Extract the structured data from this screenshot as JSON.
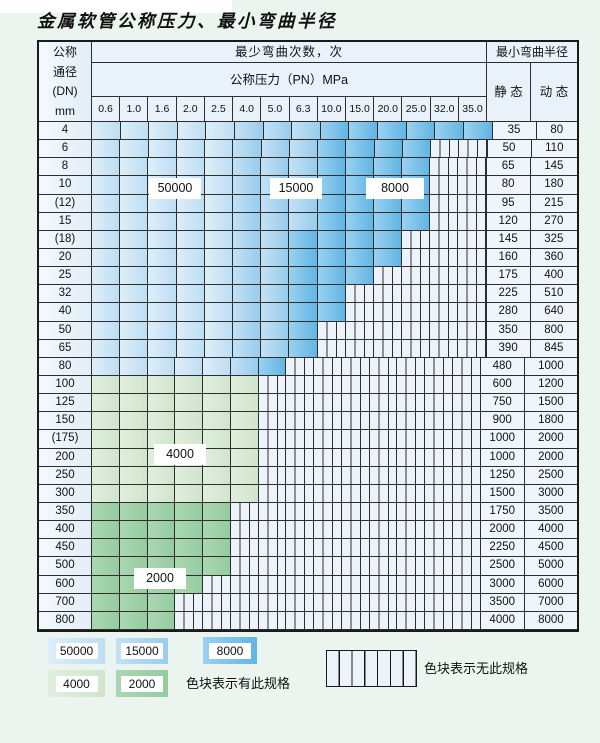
{
  "page": {
    "title": "金属软管公称压力、最小弯曲半径"
  },
  "table": {
    "header": {
      "dn_lines": [
        "公称",
        "通径",
        "(DN)",
        "mm"
      ],
      "bend_cycles_label": "最少弯曲次数，次",
      "pressure_label": "公称压力（PN）MPa",
      "bend_radius_label": "最小弯曲半径",
      "static_label": "静 态",
      "dynamic_label": "动 态",
      "pressures": [
        "0.6",
        "1.0",
        "1.6",
        "2.0",
        "2.5",
        "4.0",
        "5.0",
        "6.3",
        "10.0",
        "15.0",
        "20.0",
        "25.0",
        "32.0",
        "35.0"
      ]
    },
    "rows": [
      {
        "dn": "4",
        "b50000": 5,
        "b15000": 3,
        "b8000": 6,
        "b4000": 0,
        "b2000": 0,
        "static": "35",
        "dynamic": "80"
      },
      {
        "dn": "6",
        "b50000": 5,
        "b15000": 3,
        "b8000": 4,
        "b4000": 0,
        "b2000": 0,
        "static": "50",
        "dynamic": "110"
      },
      {
        "dn": "8",
        "b50000": 5,
        "b15000": 3,
        "b8000": 4,
        "b4000": 0,
        "b2000": 0,
        "static": "65",
        "dynamic": "145"
      },
      {
        "dn": "10",
        "b50000": 5,
        "b15000": 3,
        "b8000": 4,
        "b4000": 0,
        "b2000": 0,
        "static": "80",
        "dynamic": "180"
      },
      {
        "dn": "(12)",
        "b50000": 5,
        "b15000": 3,
        "b8000": 4,
        "b4000": 0,
        "b2000": 0,
        "static": "95",
        "dynamic": "215"
      },
      {
        "dn": "15",
        "b50000": 5,
        "b15000": 3,
        "b8000": 4,
        "b4000": 0,
        "b2000": 0,
        "static": "120",
        "dynamic": "270"
      },
      {
        "dn": "(18)",
        "b50000": 5,
        "b15000": 2,
        "b8000": 4,
        "b4000": 0,
        "b2000": 0,
        "static": "145",
        "dynamic": "325"
      },
      {
        "dn": "20",
        "b50000": 5,
        "b15000": 2,
        "b8000": 4,
        "b4000": 0,
        "b2000": 0,
        "static": "160",
        "dynamic": "360"
      },
      {
        "dn": "25",
        "b50000": 5,
        "b15000": 2,
        "b8000": 3,
        "b4000": 0,
        "b2000": 0,
        "static": "175",
        "dynamic": "400"
      },
      {
        "dn": "32",
        "b50000": 5,
        "b15000": 2,
        "b8000": 2,
        "b4000": 0,
        "b2000": 0,
        "static": "225",
        "dynamic": "510"
      },
      {
        "dn": "40",
        "b50000": 5,
        "b15000": 2,
        "b8000": 2,
        "b4000": 0,
        "b2000": 0,
        "static": "280",
        "dynamic": "640"
      },
      {
        "dn": "50",
        "b50000": 5,
        "b15000": 2,
        "b8000": 1,
        "b4000": 0,
        "b2000": 0,
        "static": "350",
        "dynamic": "800"
      },
      {
        "dn": "65",
        "b50000": 5,
        "b15000": 2,
        "b8000": 1,
        "b4000": 0,
        "b2000": 0,
        "static": "390",
        "dynamic": "845"
      },
      {
        "dn": "80",
        "b50000": 5,
        "b15000": 1,
        "b8000": 1,
        "b4000": 0,
        "b2000": 0,
        "static": "480",
        "dynamic": "1000"
      },
      {
        "dn": "100",
        "b50000": 0,
        "b15000": 0,
        "b8000": 0,
        "b4000": 6,
        "b2000": 0,
        "static": "600",
        "dynamic": "1200"
      },
      {
        "dn": "125",
        "b50000": 0,
        "b15000": 0,
        "b8000": 0,
        "b4000": 6,
        "b2000": 0,
        "static": "750",
        "dynamic": "1500"
      },
      {
        "dn": "150",
        "b50000": 0,
        "b15000": 0,
        "b8000": 0,
        "b4000": 6,
        "b2000": 0,
        "static": "900",
        "dynamic": "1800"
      },
      {
        "dn": "(175)",
        "b50000": 0,
        "b15000": 0,
        "b8000": 0,
        "b4000": 6,
        "b2000": 0,
        "static": "1000",
        "dynamic": "2000"
      },
      {
        "dn": "200",
        "b50000": 0,
        "b15000": 0,
        "b8000": 0,
        "b4000": 6,
        "b2000": 0,
        "static": "1000",
        "dynamic": "2000"
      },
      {
        "dn": "250",
        "b50000": 0,
        "b15000": 0,
        "b8000": 0,
        "b4000": 6,
        "b2000": 0,
        "static": "1250",
        "dynamic": "2500"
      },
      {
        "dn": "300",
        "b50000": 0,
        "b15000": 0,
        "b8000": 0,
        "b4000": 6,
        "b2000": 0,
        "static": "1500",
        "dynamic": "3000"
      },
      {
        "dn": "350",
        "b50000": 0,
        "b15000": 0,
        "b8000": 0,
        "b4000": 0,
        "b2000": 5,
        "static": "1750",
        "dynamic": "3500"
      },
      {
        "dn": "400",
        "b50000": 0,
        "b15000": 0,
        "b8000": 0,
        "b4000": 0,
        "b2000": 5,
        "static": "2000",
        "dynamic": "4000"
      },
      {
        "dn": "450",
        "b50000": 0,
        "b15000": 0,
        "b8000": 0,
        "b4000": 0,
        "b2000": 5,
        "static": "2250",
        "dynamic": "4500"
      },
      {
        "dn": "500",
        "b50000": 0,
        "b15000": 0,
        "b8000": 0,
        "b4000": 0,
        "b2000": 5,
        "static": "2500",
        "dynamic": "5000"
      },
      {
        "dn": "600",
        "b50000": 0,
        "b15000": 0,
        "b8000": 0,
        "b4000": 0,
        "b2000": 4,
        "static": "3000",
        "dynamic": "6000"
      },
      {
        "dn": "700",
        "b50000": 0,
        "b15000": 0,
        "b8000": 0,
        "b4000": 0,
        "b2000": 3,
        "static": "3500",
        "dynamic": "7000"
      },
      {
        "dn": "800",
        "b50000": 0,
        "b15000": 0,
        "b8000": 0,
        "b4000": 0,
        "b2000": 3,
        "static": "4000",
        "dynamic": "8000"
      }
    ]
  },
  "overlays": {
    "l50000": "50000",
    "l15000": "15000",
    "l8000": "8000",
    "l4000": "4000",
    "l2000": "2000"
  },
  "legend": {
    "items": [
      {
        "label": "50000"
      },
      {
        "label": "15000"
      },
      {
        "label": "8000"
      },
      {
        "label": "4000"
      },
      {
        "label": "2000"
      }
    ],
    "has_spec_text": "色块表示有此规格",
    "no_spec_text": "色块表示无此规格"
  },
  "colors": {
    "page_bg": "#ebf4ef",
    "grid_line": "#2e2e2e",
    "header_bg": "#e9f2fb",
    "valcell_bg": "#eef5fb",
    "hatch_bg": "#edf3fa",
    "z50000": [
      "#ddeef9",
      "#bedef3"
    ],
    "z15000": [
      "#c2e1f5",
      "#99ccec"
    ],
    "z8000": [
      "#9bd1f0",
      "#61b5e4"
    ],
    "z4000": [
      "#e1eede",
      "#d0e5cc"
    ],
    "z2000": [
      "#abd7b2",
      "#94cc9f"
    ]
  }
}
